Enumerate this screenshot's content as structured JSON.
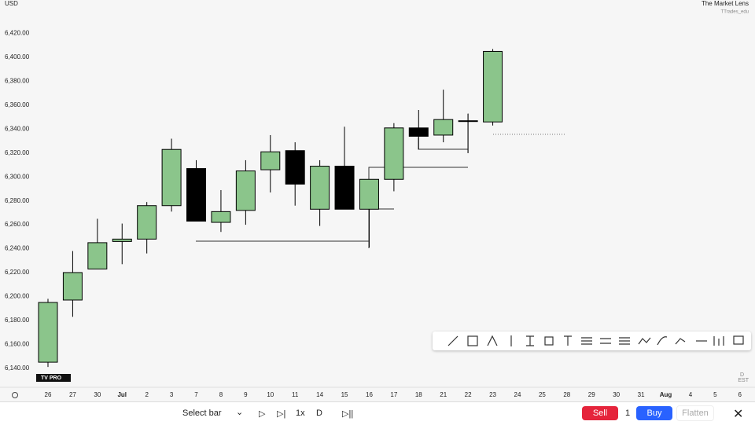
{
  "header": {
    "currency": "USD",
    "brand": "The Market Lens",
    "handle": "TTrades_edu"
  },
  "chart_data": {
    "type": "candlestick",
    "categories": [
      "26",
      "27",
      "30",
      "Jul",
      "2",
      "3",
      "7",
      "8",
      "9",
      "10",
      "11",
      "14",
      "15",
      "16",
      "17",
      "18",
      "21",
      "22",
      "23",
      "24",
      "25",
      "28",
      "29",
      "30",
      "31",
      "Aug",
      "4",
      "5",
      "6"
    ],
    "open": [
      6145,
      6197,
      6223,
      6246,
      6248,
      6276,
      6307,
      6262,
      6272,
      6306,
      6322,
      6273,
      6309,
      6273,
      6298,
      6341,
      6335,
      6347,
      6346,
      null,
      null,
      null,
      null,
      null,
      null,
      null,
      null,
      null,
      null
    ],
    "high": [
      6198,
      6238,
      6265,
      6261,
      6279,
      6332,
      6314,
      6289,
      6314,
      6335,
      6329,
      6314,
      6342,
      6298,
      6345,
      6356,
      6373,
      6353,
      6407,
      null,
      null,
      null,
      null,
      null,
      null,
      null,
      null,
      null,
      null
    ],
    "low": [
      6141,
      6183,
      6223,
      6227,
      6236,
      6271,
      6263,
      6254,
      6260,
      6287,
      6276,
      6259,
      6273,
      6241,
      6288,
      6323,
      6329,
      6320,
      6343,
      null,
      null,
      null,
      null,
      null,
      null,
      null,
      null,
      null,
      null
    ],
    "close": [
      6195,
      6220,
      6245,
      6248,
      6276,
      6323,
      6263,
      6271,
      6305,
      6321,
      6294,
      6309,
      6273,
      6298,
      6341,
      6334,
      6348,
      6347,
      6405,
      null,
      null,
      null,
      null,
      null,
      null,
      null,
      null,
      null,
      null
    ],
    "up_color": "#8bc58b",
    "down_color": "#000000",
    "ylim": [
      6126,
      6448
    ],
    "yticks": [
      {
        "value": 6140,
        "label": "6,140.00"
      },
      {
        "value": 6160,
        "label": "6,160.00"
      },
      {
        "value": 6180,
        "label": "6,180.00"
      },
      {
        "value": 6200,
        "label": "6,200.00"
      },
      {
        "value": 6220,
        "label": "6,220.00"
      },
      {
        "value": 6240,
        "label": "6,240.00"
      },
      {
        "value": 6260,
        "label": "6,260.00"
      },
      {
        "value": 6280,
        "label": "6,280.00"
      },
      {
        "value": 6300,
        "label": "6,300.00"
      },
      {
        "value": 6320,
        "label": "6,320.00"
      },
      {
        "value": 6340,
        "label": "6,340.00"
      },
      {
        "value": 6360,
        "label": "6,360.00"
      },
      {
        "value": 6380,
        "label": "6,380.00"
      },
      {
        "value": 6400,
        "label": "6,400.00"
      },
      {
        "value": 6420,
        "label": "6,420.00"
      }
    ],
    "grid": false
  },
  "corner": {
    "interval": "D",
    "timezone": "EST"
  },
  "toolbar": {
    "select": "Select bar",
    "speed": "1x",
    "interval": "D",
    "sell": "Sell",
    "quantity": "1",
    "buy": "Buy",
    "flatten": "Flatten"
  }
}
